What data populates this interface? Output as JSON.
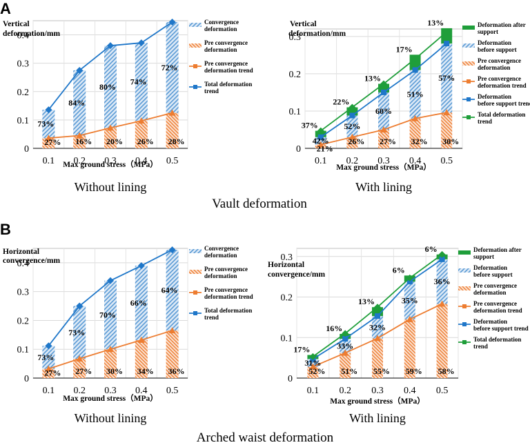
{
  "panel_labels": [
    "A",
    "B"
  ],
  "section_titles": [
    "Vault deformation",
    "Arched waist deformation"
  ],
  "colors": {
    "convergence": "#5b9bd5",
    "pre": "#ed7d31",
    "after_support": "#1f9e3a",
    "total_line": "#1f77c9",
    "grid": "#d9d9d9"
  },
  "chart_data": [
    {
      "id": "A-left",
      "type": "bar",
      "title": "Without lining",
      "ylabel": "Vertical deformation/mm",
      "xlabel": "Max ground stress（MPa）",
      "categories": [
        "0.1",
        "0.2",
        "0.3",
        "0.4",
        "0.5"
      ],
      "ylim": [
        0,
        0.45
      ],
      "yticks": [
        0,
        0.1,
        0.2,
        0.3,
        0.4
      ],
      "ytick_labels": [
        "0",
        "0.1",
        "0.2",
        "0.3",
        "0.4"
      ],
      "series": [
        {
          "name": "Convergence deformation",
          "kind": "bar",
          "color": "#5b9bd5",
          "values": [
            0.1,
            0.23,
            0.29,
            0.275,
            0.32
          ]
        },
        {
          "name": "Pre convergence deformation",
          "kind": "bar",
          "color": "#ed7d31",
          "values": [
            0.036,
            0.045,
            0.072,
            0.097,
            0.125
          ]
        },
        {
          "name": "Pre convergence deformation trend",
          "kind": "line",
          "marker": "triangle",
          "color": "#ed7d31",
          "values": [
            0.036,
            0.045,
            0.072,
            0.097,
            0.125
          ]
        },
        {
          "name": "Total deformation trend",
          "kind": "line",
          "marker": "diamond",
          "color": "#1f77c9",
          "values": [
            0.136,
            0.275,
            0.362,
            0.372,
            0.445
          ]
        }
      ],
      "labels": [
        {
          "series": "Convergence deformation",
          "values": [
            "73%",
            "84%",
            "80%",
            "74%",
            "72%"
          ]
        },
        {
          "series": "Pre convergence deformation",
          "values": [
            "27%",
            "16%",
            "20%",
            "26%",
            "28%"
          ]
        }
      ]
    },
    {
      "id": "A-right",
      "type": "bar",
      "title": "With lining",
      "ylabel": "Vertical deformation/mm",
      "xlabel": "Max ground stress（MPa）",
      "categories": [
        "0.1",
        "0.2",
        "0.3",
        "0.4",
        "0.5"
      ],
      "ylim": [
        0,
        0.32
      ],
      "yticks": [
        0,
        0.1,
        0.2,
        0.3
      ],
      "ytick_labels": [
        "0",
        "0.1",
        "0.2",
        "0.3"
      ],
      "series": [
        {
          "name": "Deformation after support",
          "kind": "bar",
          "color": "#1f9e3a",
          "values": [
            0.017,
            0.022,
            0.023,
            0.041,
            0.041
          ]
        },
        {
          "name": "Deformation before support",
          "kind": "bar",
          "color": "#5b9bd5",
          "values": [
            0.02,
            0.058,
            0.1,
            0.13,
            0.185
          ]
        },
        {
          "name": "Pre convergence deformation",
          "kind": "bar",
          "color": "#ed7d31",
          "values": [
            0.01,
            0.03,
            0.05,
            0.08,
            0.096
          ]
        },
        {
          "name": "Pre convergence deformation trend",
          "kind": "line",
          "marker": "triangle",
          "color": "#ed7d31",
          "values": [
            0.01,
            0.03,
            0.05,
            0.08,
            0.096
          ]
        },
        {
          "name": "Deformation before support trend",
          "kind": "line",
          "marker": "square",
          "color": "#1f77c9",
          "values": [
            0.03,
            0.088,
            0.15,
            0.21,
            0.281
          ]
        },
        {
          "name": "Total deformation trend",
          "kind": "line",
          "marker": "diamond",
          "color": "#1f9e3a",
          "values": [
            0.047,
            0.11,
            0.173,
            0.24,
            0.312
          ]
        }
      ],
      "labels": [
        {
          "series": "Deformation after support",
          "values": [
            "37%",
            "22%",
            "13%",
            "17%",
            "13%"
          ]
        },
        {
          "series": "Deformation before support",
          "values": [
            "42%",
            "52%",
            "60%",
            "51%",
            "57%"
          ]
        },
        {
          "series": "Pre convergence deformation",
          "values": [
            "21%",
            "26%",
            "27%",
            "32%",
            "30%"
          ]
        }
      ]
    },
    {
      "id": "B-left",
      "type": "bar",
      "title": "Without lining",
      "ylabel": "Horizontal convergence/mm",
      "xlabel": "Max ground stress（MPa）",
      "categories": [
        "0.1",
        "0.2",
        "0.3",
        "0.4",
        "0.5"
      ],
      "ylim": [
        0,
        0.45
      ],
      "yticks": [
        0,
        0.1,
        0.2,
        0.3,
        0.4
      ],
      "ytick_labels": [
        "0",
        "0.1",
        "0.2",
        "0.3",
        "0.4"
      ],
      "series": [
        {
          "name": "Convergence deformation",
          "kind": "bar",
          "color": "#5b9bd5",
          "values": [
            0.08,
            0.183,
            0.238,
            0.258,
            0.28
          ]
        },
        {
          "name": "Pre convergence deformation",
          "kind": "bar",
          "color": "#ed7d31",
          "values": [
            0.032,
            0.067,
            0.1,
            0.132,
            0.165
          ]
        },
        {
          "name": "Pre convergence deformation trend",
          "kind": "line",
          "marker": "triangle",
          "color": "#ed7d31",
          "values": [
            0.032,
            0.067,
            0.1,
            0.132,
            0.165
          ]
        },
        {
          "name": "Total deformation trend",
          "kind": "line",
          "marker": "diamond",
          "color": "#1f77c9",
          "values": [
            0.112,
            0.25,
            0.338,
            0.39,
            0.445
          ]
        }
      ],
      "labels": [
        {
          "series": "Convergence deformation",
          "values": [
            "73%",
            "73%",
            "70%",
            "66%",
            "64%"
          ]
        },
        {
          "series": "Pre convergence deformation",
          "values": [
            "27%",
            "27%",
            "30%",
            "34%",
            "36%"
          ]
        }
      ]
    },
    {
      "id": "B-right",
      "type": "bar",
      "title": "With lining",
      "ylabel": "Horizontal convergence/mm",
      "xlabel": "Max ground stress（MPa）",
      "categories": [
        "0.1",
        "0.2",
        "0.3",
        "0.4",
        "0.5"
      ],
      "ylim": [
        0,
        0.32
      ],
      "yticks": [
        0,
        0.1,
        0.2,
        0.3
      ],
      "ytick_labels": [
        "0",
        "0.1",
        "0.2",
        "0.3"
      ],
      "series": [
        {
          "name": "Deformation after support",
          "kind": "bar",
          "color": "#1f9e3a",
          "values": [
            0.01,
            0.012,
            0.022,
            0.015,
            0.012
          ]
        },
        {
          "name": "Deformation before support",
          "kind": "bar",
          "color": "#5b9bd5",
          "values": [
            0.019,
            0.035,
            0.055,
            0.093,
            0.11
          ]
        },
        {
          "name": "Pre convergence deformation",
          "kind": "bar",
          "color": "#ed7d31",
          "values": [
            0.028,
            0.062,
            0.098,
            0.145,
            0.183
          ]
        },
        {
          "name": "Pre convergence deformation trend",
          "kind": "line",
          "marker": "triangle",
          "color": "#ed7d31",
          "values": [
            0.028,
            0.062,
            0.098,
            0.145,
            0.183
          ]
        },
        {
          "name": "Deformation before support trend",
          "kind": "line",
          "marker": "square",
          "color": "#1f77c9",
          "values": [
            0.047,
            0.097,
            0.153,
            0.238,
            0.293
          ]
        },
        {
          "name": "Total deformation trend",
          "kind": "line",
          "marker": "diamond",
          "color": "#1f9e3a",
          "values": [
            0.053,
            0.11,
            0.175,
            0.247,
            0.305
          ]
        }
      ],
      "labels": [
        {
          "series": "Deformation after support",
          "values": [
            "17%",
            "16%",
            "13%",
            "6%",
            "6%"
          ]
        },
        {
          "series": "Deformation before support",
          "values": [
            "31%",
            "33%",
            "32%",
            "35%",
            "36%"
          ]
        },
        {
          "series": "Pre convergence deformation",
          "values": [
            "52%",
            "51%",
            "55%",
            "59%",
            "58%"
          ]
        }
      ]
    }
  ]
}
